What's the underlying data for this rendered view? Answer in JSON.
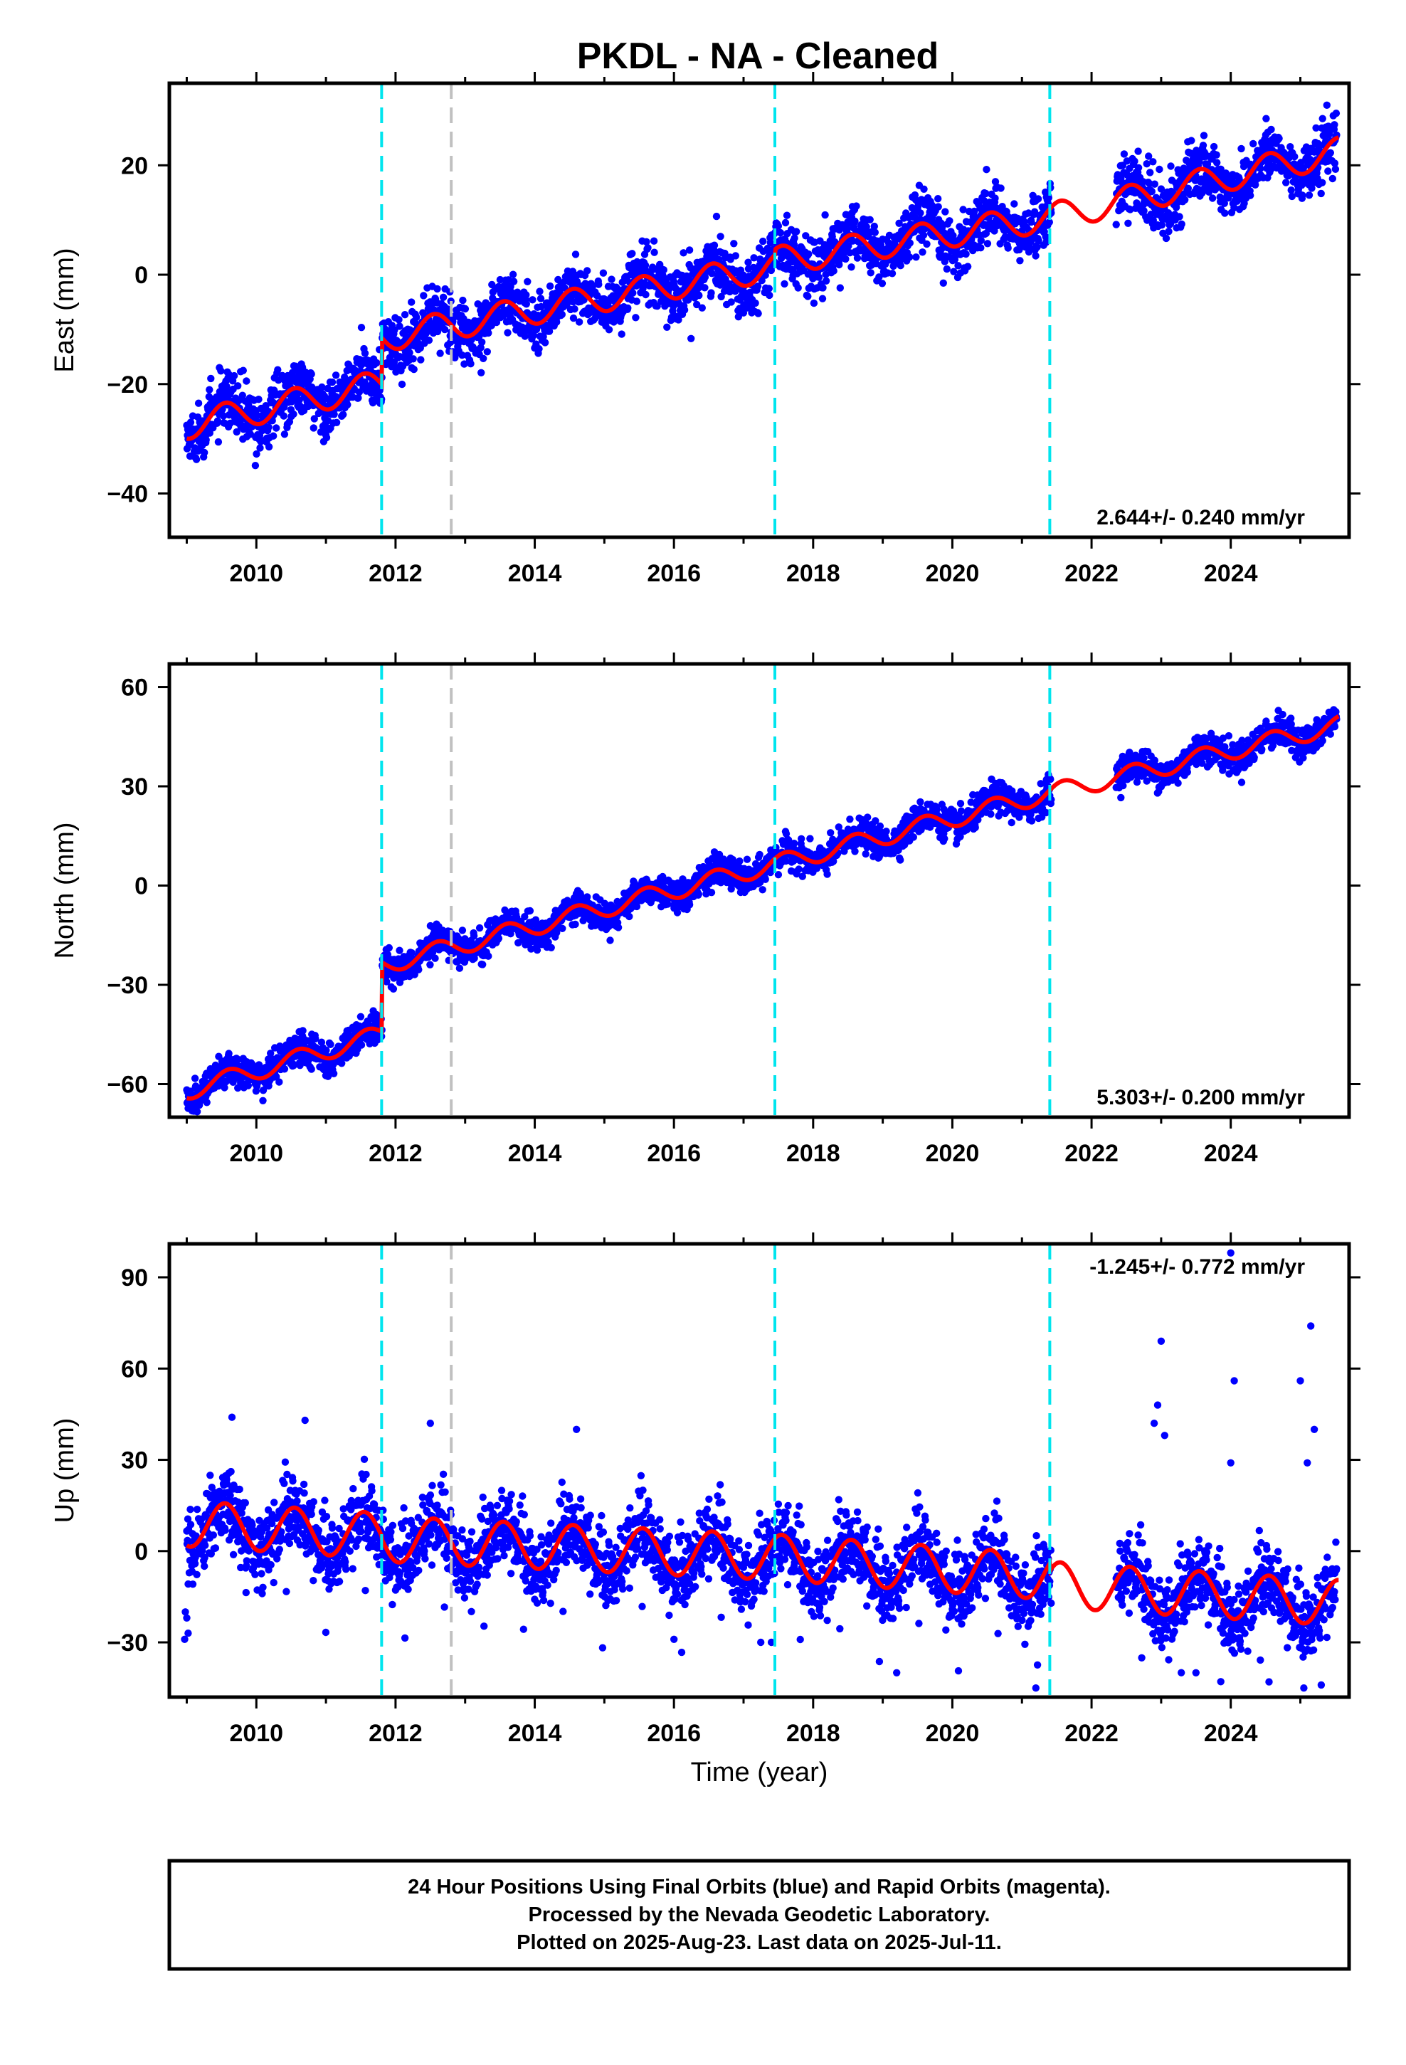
{
  "title": "PKDL  - NA - Cleaned",
  "colors": {
    "data": "#0000ff",
    "model": "#ff0000",
    "equipment_line": "#00e5ee",
    "other_line": "#c0c0c0",
    "frame": "#000000"
  },
  "chart_data": [
    {
      "type": "scatter",
      "ylabel": "East (mm)",
      "xlabel": "",
      "xlim": [
        2008.75,
        2025.7
      ],
      "ylim": [
        -48,
        35
      ],
      "xticks": [
        2010,
        2012,
        2014,
        2016,
        2018,
        2020,
        2022,
        2024
      ],
      "yticks": [
        -40,
        -20,
        0,
        20
      ],
      "ytick_labels": [
        "−40",
        "−20",
        "0",
        "20"
      ],
      "rate": "2.644+/- 0.240 mm/yr",
      "rate_position": "bottom-right",
      "vertical_lines": [
        {
          "x": 2011.8,
          "color": "cyan"
        },
        {
          "x": 2012.8,
          "color": "gray"
        },
        {
          "x": 2017.45,
          "color": "cyan"
        },
        {
          "x": 2021.4,
          "color": "cyan"
        }
      ],
      "model": {
        "trend_knots": [
          [
            2009.0,
            -27.5
          ],
          [
            2011.8,
            -20.0
          ],
          [
            2011.81,
            -11.5
          ],
          [
            2017.45,
            1.5
          ],
          [
            2017.46,
            2.5
          ],
          [
            2021.4,
            10.5
          ],
          [
            2021.41,
            10.5
          ],
          [
            2025.55,
            22.5
          ]
        ],
        "annual_amplitude": 2.6,
        "annual_phase": 0.3
      },
      "scatter": {
        "start": 2009.0,
        "end": 2025.52,
        "gaps": [
          [
            2021.42,
            2022.35
          ]
        ],
        "noise": 2.6,
        "count": 3200
      }
    },
    {
      "type": "scatter",
      "ylabel": "North (mm)",
      "xlabel": "",
      "xlim": [
        2008.75,
        2025.7
      ],
      "ylim": [
        -70,
        67
      ],
      "xticks": [
        2010,
        2012,
        2014,
        2016,
        2018,
        2020,
        2022,
        2024
      ],
      "yticks": [
        -60,
        -30,
        0,
        30,
        60
      ],
      "ytick_labels": [
        "−60",
        "−30",
        "0",
        "30",
        "60"
      ],
      "rate": "5.303+/- 0.200 mm/yr",
      "rate_position": "bottom-right",
      "vertical_lines": [
        {
          "x": 2011.8,
          "color": "cyan"
        },
        {
          "x": 2012.8,
          "color": "gray"
        },
        {
          "x": 2017.45,
          "color": "cyan"
        },
        {
          "x": 2021.4,
          "color": "cyan"
        }
      ],
      "model": {
        "trend_knots": [
          [
            2009.0,
            -62.0
          ],
          [
            2011.8,
            -45.0
          ],
          [
            2011.81,
            -24.0
          ],
          [
            2017.45,
            6.5
          ],
          [
            2017.46,
            6.5
          ],
          [
            2021.4,
            28.0
          ],
          [
            2021.41,
            28.0
          ],
          [
            2025.55,
            48.5
          ]
        ],
        "annual_amplitude": 2.8,
        "annual_phase": 0.35
      },
      "scatter": {
        "start": 2009.0,
        "end": 2025.52,
        "gaps": [
          [
            2021.42,
            2022.35
          ]
        ],
        "noise": 2.3,
        "count": 3200
      }
    },
    {
      "type": "scatter",
      "ylabel": "Up (mm)",
      "xlabel": "Time (year)",
      "xlim": [
        2008.75,
        2025.7
      ],
      "ylim": [
        -48,
        101
      ],
      "xticks": [
        2010,
        2012,
        2014,
        2016,
        2018,
        2020,
        2022,
        2024
      ],
      "yticks": [
        -30,
        0,
        30,
        60,
        90
      ],
      "ytick_labels": [
        "−30",
        "0",
        "30",
        "60",
        "90"
      ],
      "rate": "-1.245+/- 0.772 mm/yr",
      "rate_position": "top-right",
      "vertical_lines": [
        {
          "x": 2011.8,
          "color": "cyan"
        },
        {
          "x": 2012.8,
          "color": "gray"
        },
        {
          "x": 2017.45,
          "color": "cyan"
        },
        {
          "x": 2021.4,
          "color": "cyan"
        }
      ],
      "model": {
        "trend_knots": [
          [
            2009.0,
            9.0
          ],
          [
            2011.8,
            5.0
          ],
          [
            2011.81,
            4.0
          ],
          [
            2017.45,
            -2.0
          ],
          [
            2017.46,
            -2.0
          ],
          [
            2021.4,
            -8.5
          ],
          [
            2021.41,
            -11.0
          ],
          [
            2025.55,
            -17.0
          ]
        ],
        "annual_amplitude": 7.5,
        "annual_phase": 0.3
      },
      "scatter": {
        "start": 2009.0,
        "end": 2025.52,
        "gaps": [
          [
            2021.42,
            2022.35
          ]
        ],
        "noise": 6.5,
        "count": 3200
      },
      "outliers": [
        [
          2008.98,
          -20
        ],
        [
          2009.0,
          -22
        ],
        [
          2008.97,
          -29
        ],
        [
          2009.02,
          -27
        ],
        [
          2009.65,
          44
        ],
        [
          2010.7,
          43
        ],
        [
          2012.5,
          42
        ],
        [
          2014.6,
          40
        ],
        [
          2016.0,
          -29
        ],
        [
          2017.4,
          -30
        ],
        [
          2019.2,
          -40
        ],
        [
          2021.2,
          -45
        ],
        [
          2023.0,
          69
        ],
        [
          2022.95,
          48
        ],
        [
          2022.9,
          42
        ],
        [
          2023.05,
          38
        ],
        [
          2024.0,
          98
        ],
        [
          2024.05,
          56
        ],
        [
          2024.0,
          29
        ],
        [
          2025.0,
          56
        ],
        [
          2025.15,
          74
        ],
        [
          2025.2,
          40
        ],
        [
          2025.1,
          29
        ],
        [
          2023.5,
          -40
        ],
        [
          2024.55,
          -43
        ],
        [
          2025.05,
          -45
        ],
        [
          2025.3,
          -44
        ]
      ]
    }
  ],
  "footer": {
    "line1": "24 Hour Positions Using Final Orbits (blue) and Rapid Orbits (magenta).",
    "line2": "Processed by the Nevada Geodetic Laboratory.",
    "line3": "Plotted on 2025-Aug-23. Last data on 2025-Jul-11."
  }
}
